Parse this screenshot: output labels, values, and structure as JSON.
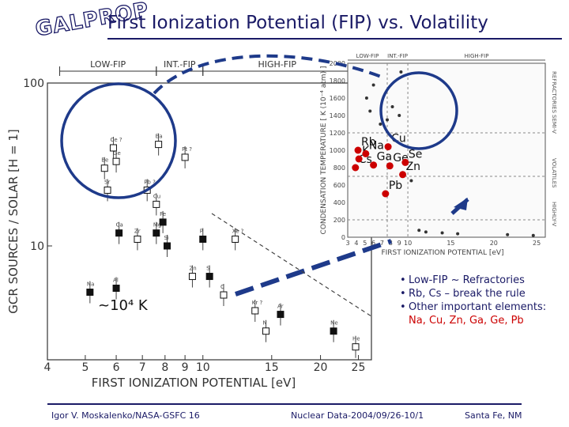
{
  "slide": {
    "logo": "GALPROP",
    "title": "First Ionization Potential (FIP) vs. Volatility",
    "abundance_note": "~10⁴ K",
    "notes": [
      {
        "text": "Low-FIP ~ Refractories"
      },
      {
        "text": "Rb, Cs – break the rule"
      },
      {
        "text": "Other important elements: ",
        "highlight": "Na, Cu, Zn, Ga, Ge, Pb"
      }
    ],
    "footer": {
      "left": "Igor V. Moskalenko/NASA-GSFC 16",
      "center": "Nuclear Data-2004/09/26-10/1",
      "right": "Santa Fe, NM"
    },
    "colors": {
      "title": "#1a1a66",
      "highlight": "#cc0000",
      "circle": "#1e3a8a",
      "arrow": "#1e3a8a"
    }
  },
  "chart_data": [
    {
      "type": "scatter",
      "xlabel": "FIRST   IONIZATION   POTENTIAL [eV]",
      "ylabel": "GCR SOURCES / SOLAR   [H = 1]",
      "xlog": true,
      "ylog": true,
      "xlim": [
        4,
        27
      ],
      "ylim": [
        2,
        100
      ],
      "xticks": [
        4,
        5,
        6,
        7,
        8,
        9,
        10,
        15,
        20,
        25
      ],
      "yticks": [
        {
          "v": 10,
          "label": "10"
        },
        {
          "v": 100,
          "label": "100"
        }
      ],
      "bands": [
        {
          "label": "LOW-FIP",
          "from": 4.3,
          "to": 7.6
        },
        {
          "label": "INT.-FIP",
          "from": 7.6,
          "to": 10.0
        },
        {
          "label": "HIGH-FIP",
          "from": 10.0,
          "to": 24.0
        }
      ],
      "points": [
        {
          "x": 5.14,
          "y": 5.2,
          "label": "Na",
          "filled": true
        },
        {
          "x": 6.0,
          "y": 5.5,
          "label": "Al",
          "filled": true
        },
        {
          "x": 6.1,
          "y": 12.0,
          "label": "Ca",
          "filled": true
        },
        {
          "x": 5.7,
          "y": 22.0,
          "label": "Sr",
          "filled": false
        },
        {
          "x": 5.6,
          "y": 30.0,
          "label": "Be",
          "filled": false
        },
        {
          "x": 5.9,
          "y": 40.0,
          "label": "Ce ?",
          "filled": false
        },
        {
          "x": 6.0,
          "y": 33.0,
          "label": "Ge",
          "filled": false
        },
        {
          "x": 6.8,
          "y": 11.0,
          "label": "Zr",
          "filled": false
        },
        {
          "x": 7.2,
          "y": 22.0,
          "label": "Pb ?",
          "filled": false
        },
        {
          "x": 7.6,
          "y": 12.0,
          "label": "Mg",
          "filled": true
        },
        {
          "x": 7.9,
          "y": 14.0,
          "label": "Fe",
          "filled": true
        },
        {
          "x": 7.6,
          "y": 18.0,
          "label": "Cu",
          "filled": false
        },
        {
          "x": 8.1,
          "y": 10.0,
          "label": "Si",
          "filled": true
        },
        {
          "x": 7.7,
          "y": 42.0,
          "label": "Ba",
          "filled": false
        },
        {
          "x": 9.0,
          "y": 35.0,
          "label": "Pt ?",
          "filled": false
        },
        {
          "x": 9.4,
          "y": 6.5,
          "label": "Zn",
          "filled": false
        },
        {
          "x": 10.0,
          "y": 11.0,
          "label": "P",
          "filled": true
        },
        {
          "x": 10.4,
          "y": 6.5,
          "label": "S",
          "filled": true
        },
        {
          "x": 11.3,
          "y": 5.0,
          "label": "C",
          "filled": false
        },
        {
          "x": 12.1,
          "y": 11.0,
          "label": "Xe ?",
          "filled": false
        },
        {
          "x": 13.6,
          "y": 4.0,
          "label": "Kr ?",
          "filled": false
        },
        {
          "x": 14.5,
          "y": 3.0,
          "label": "N",
          "filled": false
        },
        {
          "x": 15.8,
          "y": 3.8,
          "label": "Ar",
          "filled": true
        },
        {
          "x": 21.6,
          "y": 3.0,
          "label": "Ne",
          "filled": true
        },
        {
          "x": 24.6,
          "y": 2.4,
          "label": "He",
          "filled": false
        }
      ]
    },
    {
      "type": "scatter",
      "xlabel": "FIRST IONIZATION POTENTIAL  [eV]",
      "ylabel": "CONDENSATION TEMPERATURE  [ K (10⁻⁴ atm) ]",
      "xlim": [
        3,
        26
      ],
      "ylim": [
        0,
        2000
      ],
      "xticks": [
        3,
        4,
        5,
        6,
        7,
        8,
        9,
        10,
        15,
        20,
        25
      ],
      "yticks": [
        0,
        200,
        400,
        600,
        800,
        1000,
        1200,
        1400,
        1600,
        1800,
        2000
      ],
      "bands": [
        {
          "label": "LOW-FIP",
          "from": 3.0,
          "to": 7.6
        },
        {
          "label": "INT.-FIP",
          "from": 7.6,
          "to": 10.0
        },
        {
          "label": "HIGH-FIP",
          "from": 10.0,
          "to": 26.0
        }
      ],
      "side_labels": [
        "REFRACTORIES",
        "SEMI-V",
        "VOLATILES",
        "HIGHLY-V"
      ],
      "points": [
        {
          "x": 4.2,
          "y": 1000,
          "label": "Rb",
          "highlight": true
        },
        {
          "x": 3.9,
          "y": 800,
          "label": "Cs",
          "highlight": true
        },
        {
          "x": 4.3,
          "y": 900,
          "label": "K",
          "highlight": true
        },
        {
          "x": 5.1,
          "y": 960,
          "label": "Na",
          "highlight": true
        },
        {
          "x": 6.0,
          "y": 830,
          "label": "Ga",
          "highlight": true
        },
        {
          "x": 7.7,
          "y": 1040,
          "label": "Cu",
          "highlight": true
        },
        {
          "x": 7.9,
          "y": 820,
          "label": "Ge",
          "highlight": true
        },
        {
          "x": 9.4,
          "y": 720,
          "label": "Zn",
          "highlight": true
        },
        {
          "x": 7.4,
          "y": 500,
          "label": "Pb",
          "highlight": true
        },
        {
          "x": 9.7,
          "y": 860,
          "label": "Se",
          "highlight": true
        },
        {
          "x": 5.2,
          "y": 1600,
          "x_err": 0,
          "label": ""
        },
        {
          "x": 6.0,
          "y": 1750,
          "label": ""
        },
        {
          "x": 5.6,
          "y": 1450,
          "label": ""
        },
        {
          "x": 6.8,
          "y": 1300,
          "label": ""
        },
        {
          "x": 7.6,
          "y": 1350,
          "label": ""
        },
        {
          "x": 8.2,
          "y": 1500,
          "label": ""
        },
        {
          "x": 9.0,
          "y": 1400,
          "label": ""
        },
        {
          "x": 9.2,
          "y": 1900,
          "label": ""
        },
        {
          "x": 10.4,
          "y": 650,
          "label": ""
        },
        {
          "x": 11.3,
          "y": 80,
          "label": ""
        },
        {
          "x": 12.1,
          "y": 60,
          "label": ""
        },
        {
          "x": 14.0,
          "y": 50,
          "label": ""
        },
        {
          "x": 15.8,
          "y": 40,
          "label": ""
        },
        {
          "x": 21.6,
          "y": 30,
          "label": ""
        },
        {
          "x": 24.6,
          "y": 20,
          "label": ""
        }
      ]
    }
  ]
}
